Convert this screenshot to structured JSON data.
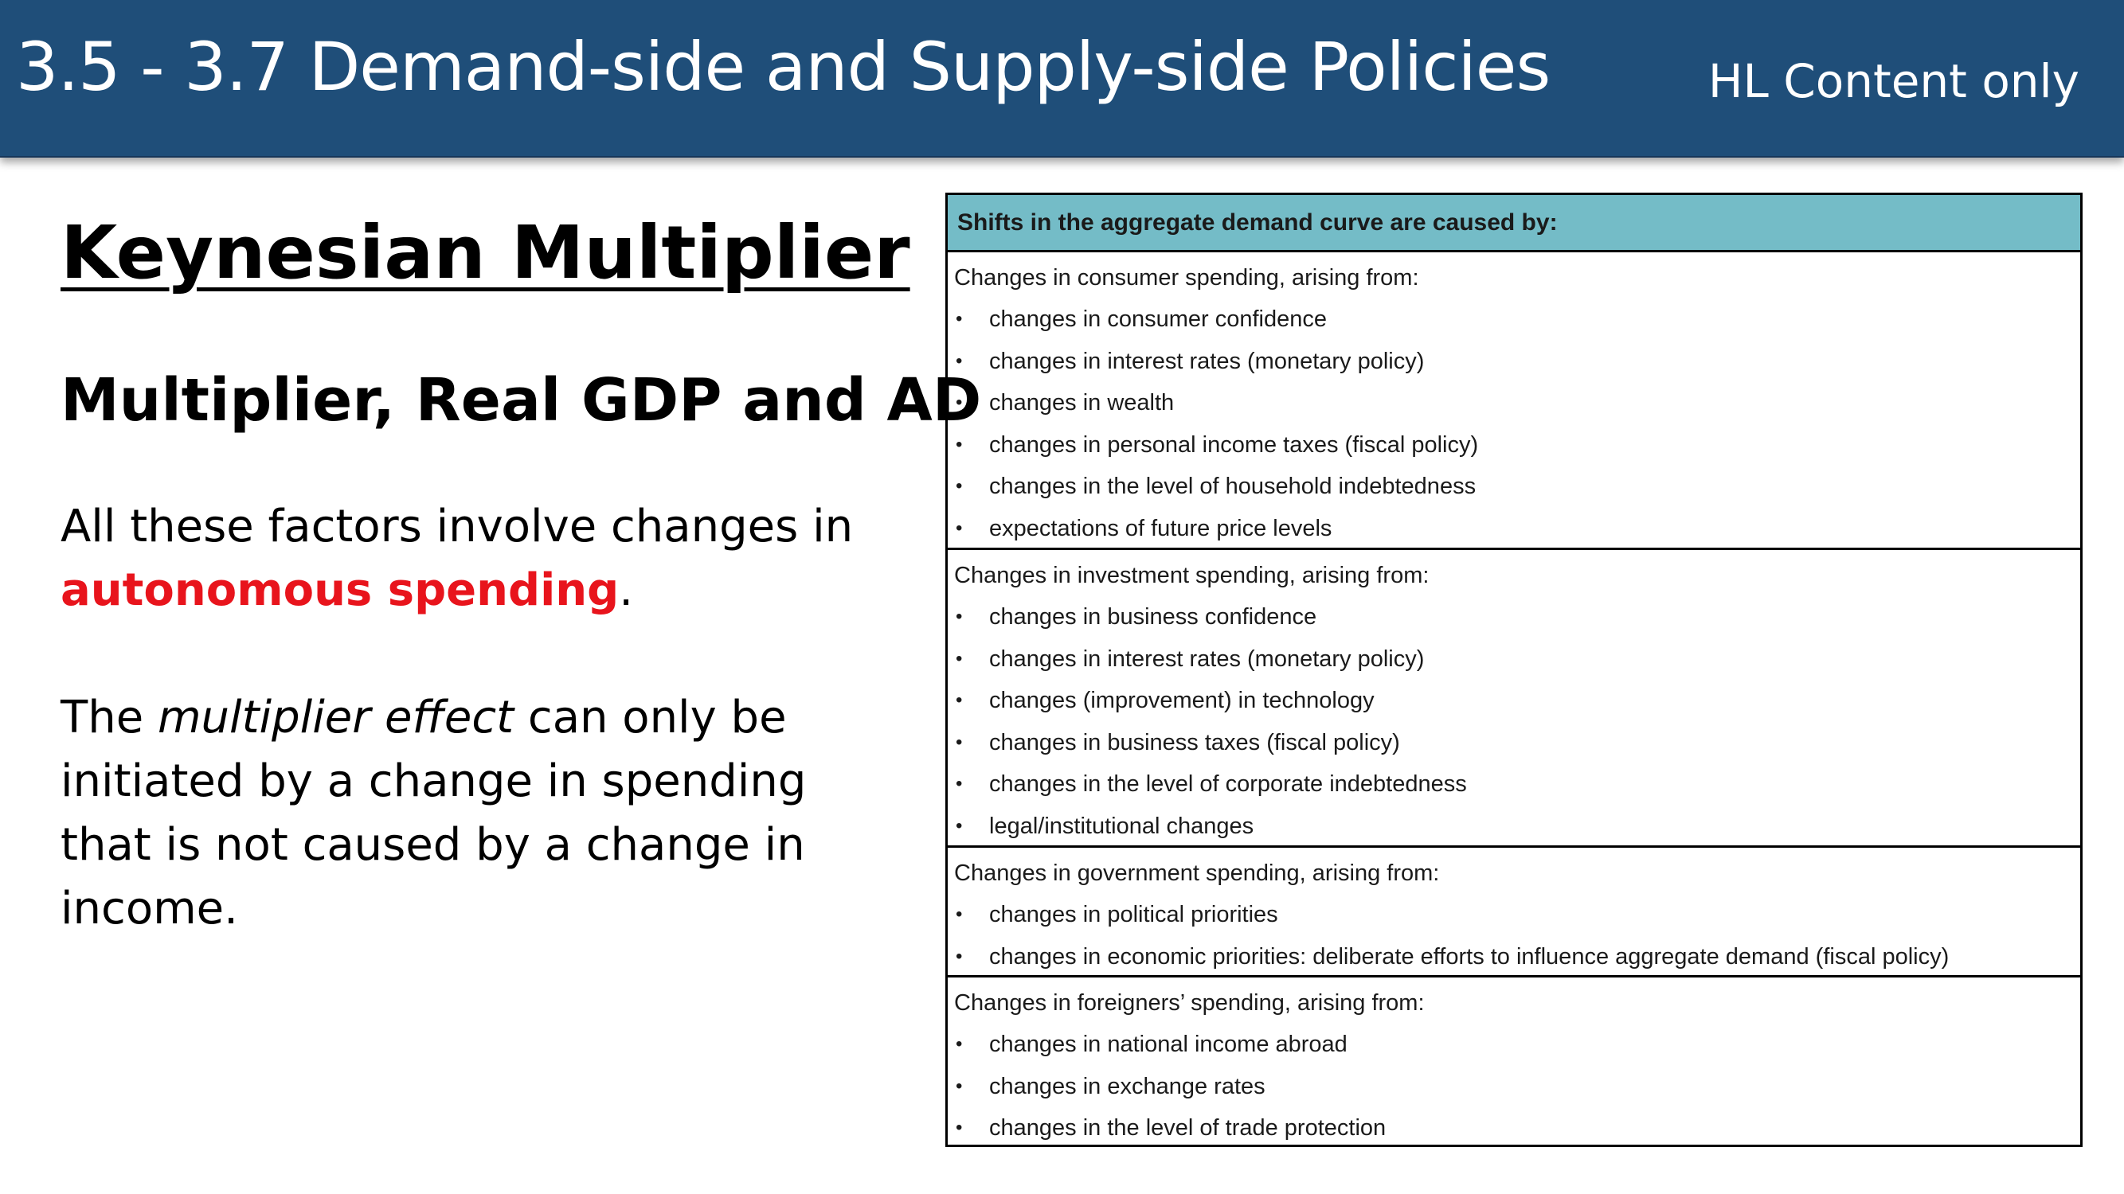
{
  "header": {
    "title": "3.5 - 3.7 Demand-side and Supply-side Policies",
    "tag": "HL Content only",
    "background_color": "#1f4e79"
  },
  "left": {
    "heading": "Keynesian Multiplier",
    "subheading": "Multiplier, Real GDP and AD",
    "para1": {
      "before": "All these factors involve changes in",
      "highlight": "autonomous spending",
      "after": ".",
      "highlight_color": "#e8141c"
    },
    "para2": {
      "before": "The",
      "italic": "multiplier effect",
      "after": "can only be initiated by a change in spending that is not caused by a change in income."
    }
  },
  "table": {
    "header": "Shifts in the aggregate demand curve are caused by:",
    "header_color": "#74bcc7",
    "bullet_symbol": "•",
    "sections": [
      {
        "title": "Changes in consumer spending, arising from:",
        "items": [
          "changes in consumer confidence",
          "changes in interest rates (monetary policy)",
          "changes in wealth",
          "changes in personal income taxes (fiscal policy)",
          "changes in the level of household indebtedness",
          "expectations of future price levels"
        ]
      },
      {
        "title": "Changes in investment spending, arising from:",
        "items": [
          "changes in business confidence",
          "changes in interest rates (monetary policy)",
          "changes (improvement) in technology",
          "changes in business taxes (fiscal policy)",
          "changes in the level of corporate indebtedness",
          "legal/institutional changes"
        ]
      },
      {
        "title": "Changes in government spending, arising from:",
        "items": [
          "changes in political priorities",
          "changes in economic priorities: deliberate efforts to influence aggregate demand (fiscal policy)"
        ]
      },
      {
        "title": "Changes in foreigners’ spending, arising from:",
        "items": [
          "changes in national income abroad",
          "changes in exchange rates",
          "changes in the level of trade protection"
        ]
      }
    ]
  }
}
